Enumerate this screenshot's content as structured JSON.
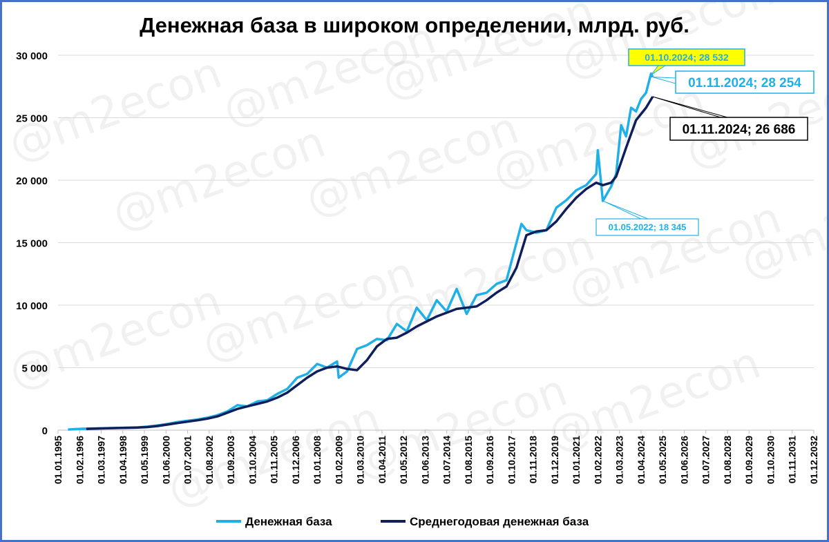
{
  "chart_data": {
    "type": "line",
    "title": "Денежная база в широком определении, млрд. руб.",
    "ylim": [
      0,
      30000
    ],
    "y_ticks": [
      "0",
      "5 000",
      "10 000",
      "15 000",
      "20 000",
      "25 000",
      "30 000"
    ],
    "x_tick_labels": [
      "01.01.1995",
      "01.02.1996",
      "01.03.1997",
      "01.04.1998",
      "01.05.1999",
      "01.06.2000",
      "01.07.2001",
      "01.08.2002",
      "01.09.2003",
      "01.10.2004",
      "01.11.2005",
      "01.12.2006",
      "01.01.2008",
      "01.02.2009",
      "01.03.2010",
      "01.04.2011",
      "01.05.2012",
      "01.06.2013",
      "01.07.2014",
      "01.08.2015",
      "01.09.2016",
      "01.10.2017",
      "01.11.2018",
      "01.12.2019",
      "01.01.2021",
      "01.02.2022",
      "01.03.2023",
      "01.04.2024",
      "01.05.2025",
      "01.06.2026",
      "01.07.2027",
      "01.08.2028",
      "01.09.2029",
      "01.10.2030",
      "01.11.2031",
      "01.12.2032"
    ],
    "grid": true,
    "legend_position": "bottom",
    "series": [
      {
        "name": "Денежная база",
        "color": "#1fb0e8",
        "points": [
          [
            "1995-07",
            50
          ],
          [
            "1996-01",
            100
          ],
          [
            "1996-07",
            120
          ],
          [
            "1997-01",
            140
          ],
          [
            "1997-07",
            160
          ],
          [
            "1998-01",
            180
          ],
          [
            "1998-07",
            200
          ],
          [
            "1999-01",
            220
          ],
          [
            "1999-07",
            280
          ],
          [
            "2000-01",
            380
          ],
          [
            "2000-07",
            500
          ],
          [
            "2001-01",
            650
          ],
          [
            "2001-07",
            750
          ],
          [
            "2002-01",
            850
          ],
          [
            "2002-07",
            1000
          ],
          [
            "2003-01",
            1200
          ],
          [
            "2003-07",
            1500
          ],
          [
            "2004-01",
            2000
          ],
          [
            "2004-07",
            1900
          ],
          [
            "2005-01",
            2300
          ],
          [
            "2005-07",
            2400
          ],
          [
            "2006-01",
            2900
          ],
          [
            "2006-07",
            3300
          ],
          [
            "2007-01",
            4200
          ],
          [
            "2007-07",
            4500
          ],
          [
            "2008-01",
            5300
          ],
          [
            "2008-07",
            5000
          ],
          [
            "2009-01",
            5500
          ],
          [
            "2009-02",
            4200
          ],
          [
            "2009-07",
            4700
          ],
          [
            "2010-01",
            6500
          ],
          [
            "2010-07",
            6800
          ],
          [
            "2011-01",
            7300
          ],
          [
            "2011-07",
            7200
          ],
          [
            "2012-01",
            8500
          ],
          [
            "2012-07",
            7900
          ],
          [
            "2013-01",
            9800
          ],
          [
            "2013-07",
            8800
          ],
          [
            "2014-01",
            10400
          ],
          [
            "2014-07",
            9500
          ],
          [
            "2015-01",
            11300
          ],
          [
            "2015-07",
            9300
          ],
          [
            "2016-01",
            10800
          ],
          [
            "2016-07",
            11000
          ],
          [
            "2017-01",
            11700
          ],
          [
            "2017-07",
            12000
          ],
          [
            "2018-01",
            15000
          ],
          [
            "2018-04",
            16500
          ],
          [
            "2018-07",
            16000
          ],
          [
            "2019-01",
            15800
          ],
          [
            "2019-07",
            16000
          ],
          [
            "2020-01",
            17800
          ],
          [
            "2020-07",
            18400
          ],
          [
            "2021-01",
            19200
          ],
          [
            "2021-07",
            19600
          ],
          [
            "2022-01",
            20500
          ],
          [
            "2022-02",
            22400
          ],
          [
            "2022-05",
            18345
          ],
          [
            "2022-10",
            19500
          ],
          [
            "2023-01",
            20500
          ],
          [
            "2023-04",
            24400
          ],
          [
            "2023-07",
            23500
          ],
          [
            "2023-10",
            25800
          ],
          [
            "2024-01",
            25500
          ],
          [
            "2024-04",
            26500
          ],
          [
            "2024-07",
            27000
          ],
          [
            "2024-10",
            28532
          ],
          [
            "2024-11",
            28254
          ]
        ]
      },
      {
        "name": "Среднегодовая денежная база",
        "color": "#0f1f5c",
        "points": [
          [
            "1996-06",
            100
          ],
          [
            "1997-01",
            130
          ],
          [
            "1997-07",
            150
          ],
          [
            "1998-01",
            170
          ],
          [
            "1998-07",
            190
          ],
          [
            "1999-01",
            210
          ],
          [
            "1999-07",
            250
          ],
          [
            "2000-01",
            330
          ],
          [
            "2000-07",
            450
          ],
          [
            "2001-01",
            570
          ],
          [
            "2001-07",
            680
          ],
          [
            "2002-01",
            790
          ],
          [
            "2002-07",
            920
          ],
          [
            "2003-01",
            1100
          ],
          [
            "2003-07",
            1400
          ],
          [
            "2004-01",
            1700
          ],
          [
            "2004-07",
            1900
          ],
          [
            "2005-01",
            2100
          ],
          [
            "2005-07",
            2300
          ],
          [
            "2006-01",
            2600
          ],
          [
            "2006-07",
            3000
          ],
          [
            "2007-01",
            3600
          ],
          [
            "2007-07",
            4200
          ],
          [
            "2008-01",
            4700
          ],
          [
            "2008-07",
            5000
          ],
          [
            "2009-01",
            5100
          ],
          [
            "2009-07",
            4900
          ],
          [
            "2010-01",
            4800
          ],
          [
            "2010-07",
            5600
          ],
          [
            "2011-01",
            6700
          ],
          [
            "2011-07",
            7300
          ],
          [
            "2012-01",
            7400
          ],
          [
            "2012-07",
            7800
          ],
          [
            "2013-01",
            8300
          ],
          [
            "2013-07",
            8700
          ],
          [
            "2014-01",
            9100
          ],
          [
            "2014-07",
            9400
          ],
          [
            "2015-01",
            9700
          ],
          [
            "2015-07",
            9800
          ],
          [
            "2016-01",
            9900
          ],
          [
            "2016-07",
            10400
          ],
          [
            "2017-01",
            11000
          ],
          [
            "2017-07",
            11500
          ],
          [
            "2018-01",
            13000
          ],
          [
            "2018-07",
            15600
          ],
          [
            "2019-01",
            15900
          ],
          [
            "2019-07",
            16000
          ],
          [
            "2020-01",
            16700
          ],
          [
            "2020-07",
            17700
          ],
          [
            "2021-01",
            18600
          ],
          [
            "2021-07",
            19300
          ],
          [
            "2022-01",
            19800
          ],
          [
            "2022-05",
            19600
          ],
          [
            "2022-10",
            19800
          ],
          [
            "2023-01",
            20300
          ],
          [
            "2023-07",
            22600
          ],
          [
            "2024-01",
            24800
          ],
          [
            "2024-07",
            25800
          ],
          [
            "2024-11",
            26686
          ]
        ]
      }
    ],
    "annotations": [
      {
        "label": "01.10.2024; 28 532",
        "date": "2024-10",
        "value": 28532,
        "series": 0,
        "style": "yellow"
      },
      {
        "label": "01.11.2024;  28 254",
        "date": "2024-11",
        "value": 28254,
        "series": 0,
        "style": "blue"
      },
      {
        "label": "01.11.2024;  26 686",
        "date": "2024-11",
        "value": 26686,
        "series": 1,
        "style": "dark"
      },
      {
        "label": "01.05.2022; 18 345",
        "date": "2022-05",
        "value": 18345,
        "series": 0,
        "style": "blue-small"
      }
    ]
  },
  "watermark": "@m2econ"
}
